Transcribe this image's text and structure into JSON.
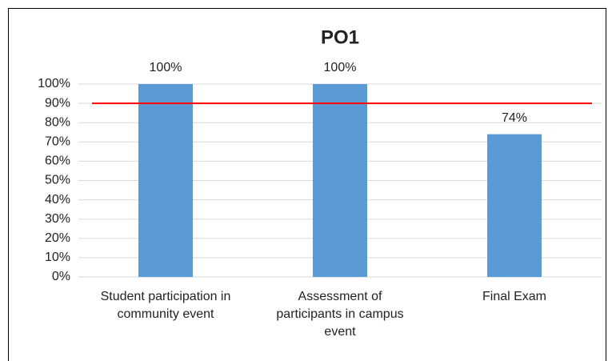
{
  "chart_data": {
    "type": "bar",
    "title": "PO1",
    "categories": [
      "Student participation in community event",
      "Assessment of participants in campus event",
      "Final Exam"
    ],
    "values": [
      100,
      100,
      74
    ],
    "value_labels": [
      "100%",
      "100%",
      "74%"
    ],
    "color": "#5b9bd5",
    "ylim": [
      0,
      100
    ],
    "yticks": [
      {
        "value": 0,
        "label": "0%"
      },
      {
        "value": 10,
        "label": "10%"
      },
      {
        "value": 20,
        "label": "20%"
      },
      {
        "value": 30,
        "label": "30%"
      },
      {
        "value": 40,
        "label": "40%"
      },
      {
        "value": 50,
        "label": "50%"
      },
      {
        "value": 60,
        "label": "60%"
      },
      {
        "value": 70,
        "label": "70%"
      },
      {
        "value": 80,
        "label": "80%"
      },
      {
        "value": 90,
        "label": "90%"
      },
      {
        "value": 100,
        "label": "100%"
      }
    ],
    "grid": true,
    "reference_line": {
      "value": 90,
      "color": "#ff0000"
    }
  }
}
